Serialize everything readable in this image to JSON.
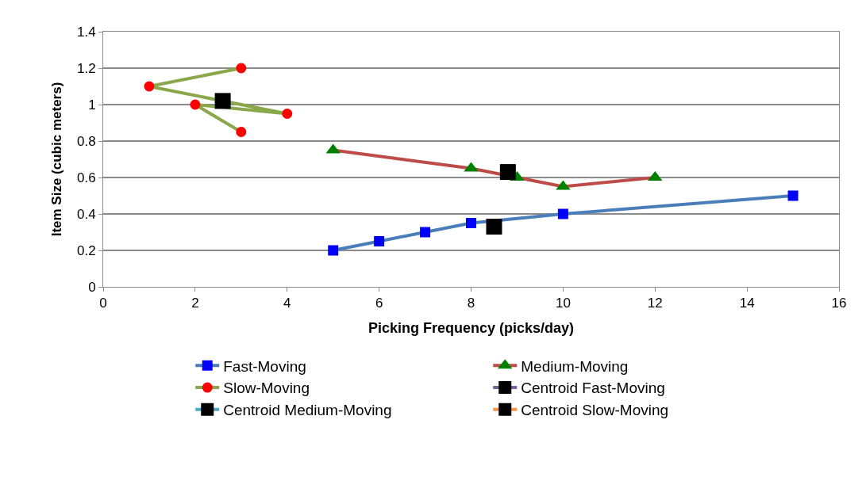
{
  "chart_data": {
    "type": "line",
    "xlabel": "Picking Frequency (picks/day)",
    "ylabel": "Item Size (cubic meters)",
    "xlim": [
      0,
      16
    ],
    "xticks": [
      0,
      2,
      4,
      6,
      8,
      10,
      12,
      14,
      16
    ],
    "ylim": [
      0,
      1.4
    ],
    "yticks": [
      0,
      0.2,
      0.4,
      0.6,
      0.8,
      1,
      1.2,
      1.4
    ],
    "grid": "y",
    "legend": "bottom",
    "series": [
      {
        "name": "Fast-Moving",
        "color": "#4a7ebb",
        "colors": [
          "#0000ff",
          "#0000ff",
          "#0000ff",
          "#0000ff",
          "#0000ff",
          "#0000ff"
        ],
        "marker": "square",
        "x": [
          5,
          6,
          7,
          8,
          10,
          15
        ],
        "values": [
          0.2,
          0.25,
          0.3,
          0.35,
          0.4,
          0.5
        ]
      },
      {
        "name": "Medium-Moving",
        "color": "#be4b48",
        "colors": [
          "#008000",
          "#008000",
          "#008000",
          "#008000",
          "#008000"
        ],
        "marker": "triangle",
        "x": [
          5,
          8,
          9,
          10,
          12
        ],
        "values": [
          0.75,
          0.65,
          0.6,
          0.55,
          0.6
        ]
      },
      {
        "name": "Slow-Moving",
        "color": "#8aa84b",
        "colors": [
          "#ff0000",
          "#ff0000",
          "#ff0000",
          "#ff0000",
          "#ff0000"
        ],
        "marker": "circle",
        "x": [
          3,
          1,
          4,
          2,
          3
        ],
        "values": [
          1.2,
          1.1,
          0.95,
          1.0,
          0.85
        ]
      },
      {
        "name": "Centroid Fast-Moving",
        "color": "#7d5fa0",
        "colors": [
          "#000000"
        ],
        "marker": "square",
        "x": [
          8.5
        ],
        "values": [
          0.33
        ]
      },
      {
        "name": "Centroid Medium-Moving",
        "color": "#4bacc6",
        "colors": [
          "#000000"
        ],
        "marker": "square",
        "x": [
          8.8
        ],
        "values": [
          0.63
        ]
      },
      {
        "name": "Centroid Slow-Moving",
        "color": "#f79646",
        "colors": [
          "#000000"
        ],
        "marker": "square",
        "x": [
          2.6
        ],
        "values": [
          1.02
        ]
      }
    ]
  }
}
